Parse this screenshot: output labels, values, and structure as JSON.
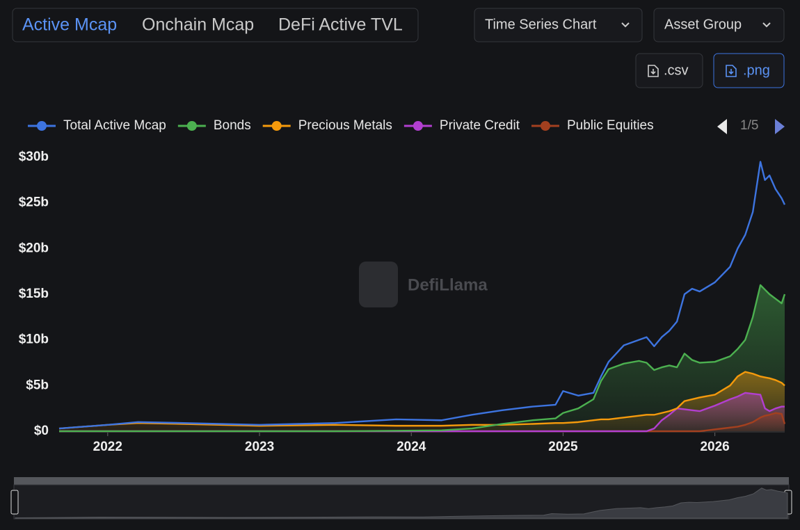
{
  "ui": {
    "tabs": [
      "Active Mcap",
      "Onchain Mcap",
      "DeFi Active TVL"
    ],
    "chart_type_button": "Time Series Chart",
    "group_button": "Asset Group",
    "csv_button": ".csv",
    "png_button": ".png",
    "legend_page": "1/5",
    "watermark": "DefiLlama"
  },
  "chart_data": {
    "type": "line",
    "x": [
      2021.68,
      2022.0,
      2022.2,
      2022.5,
      2023.0,
      2023.5,
      2023.9,
      2024.2,
      2024.4,
      2024.6,
      2024.8,
      2024.95,
      2025.0,
      2025.1,
      2025.2,
      2025.25,
      2025.3,
      2025.4,
      2025.5,
      2025.55,
      2025.6,
      2025.65,
      2025.7,
      2025.75,
      2025.8,
      2025.85,
      2025.9,
      2026.0,
      2026.1,
      2026.15,
      2026.2,
      2026.25,
      2026.3,
      2026.33,
      2026.36,
      2026.4,
      2026.44,
      2026.46
    ],
    "series": [
      {
        "name": "Total Active Mcap",
        "color": "#3d74e0",
        "values": [
          0.3,
          0.7,
          1.0,
          0.9,
          0.7,
          0.9,
          1.3,
          1.2,
          1.8,
          2.3,
          2.7,
          2.9,
          4.4,
          3.9,
          4.2,
          6.0,
          7.6,
          9.4,
          10.0,
          10.3,
          9.3,
          10.3,
          11.0,
          12.0,
          15.0,
          15.6,
          15.3,
          16.3,
          18.0,
          20.0,
          21.5,
          24.0,
          29.5,
          27.5,
          28.0,
          26.5,
          25.5,
          24.8
        ]
      },
      {
        "name": "Bonds",
        "color": "#4cb050",
        "values": [
          0,
          0,
          0,
          0,
          0,
          0,
          0.05,
          0.1,
          0.3,
          0.8,
          1.2,
          1.4,
          2.0,
          2.5,
          3.5,
          5.5,
          6.8,
          7.4,
          7.7,
          7.5,
          6.7,
          7.0,
          7.2,
          7.0,
          8.5,
          7.8,
          7.5,
          7.6,
          8.2,
          9.0,
          10.0,
          12.5,
          16.0,
          15.5,
          15.0,
          14.5,
          14.0,
          15.0
        ]
      },
      {
        "name": "Precious Metals",
        "color": "#f59a0c",
        "values": [
          0.3,
          0.7,
          0.9,
          0.8,
          0.6,
          0.7,
          0.6,
          0.6,
          0.7,
          0.7,
          0.8,
          0.9,
          0.9,
          1.0,
          1.2,
          1.3,
          1.3,
          1.5,
          1.7,
          1.8,
          1.8,
          2.0,
          2.2,
          2.5,
          3.3,
          3.5,
          3.7,
          4.0,
          5.0,
          6.0,
          6.5,
          6.3,
          6.0,
          5.9,
          5.8,
          5.6,
          5.3,
          5.0
        ]
      },
      {
        "name": "Private Credit",
        "color": "#b23fd0",
        "values": [
          0,
          0,
          0,
          0,
          0,
          0,
          0,
          0,
          0,
          0,
          0,
          0,
          0,
          0,
          0,
          0,
          0,
          0,
          0,
          0,
          0.3,
          1.2,
          1.8,
          2.5,
          2.4,
          2.3,
          2.2,
          2.8,
          3.5,
          3.8,
          4.2,
          4.1,
          4.0,
          2.5,
          2.2,
          2.5,
          2.7,
          2.7
        ]
      },
      {
        "name": "Public Equities",
        "color": "#a3401f",
        "values": [
          0,
          0,
          0,
          0,
          0,
          0,
          0,
          0,
          0,
          0,
          0,
          0,
          0,
          0,
          0,
          0,
          0,
          0,
          0,
          0,
          0,
          0,
          0,
          0,
          0,
          0,
          0,
          0.2,
          0.4,
          0.5,
          0.7,
          1.0,
          1.5,
          1.7,
          1.8,
          2.0,
          1.9,
          0.8
        ]
      }
    ],
    "xlim": [
      2021.68,
      2026.46
    ],
    "xticks": [
      2022,
      2023,
      2024,
      2025,
      2026
    ],
    "ylim": [
      0,
      30
    ],
    "yticks": [
      {
        "value": 0,
        "label": "$0"
      },
      {
        "value": 5,
        "label": "$5b"
      },
      {
        "value": 10,
        "label": "$10b"
      },
      {
        "value": 15,
        "label": "$15b"
      },
      {
        "value": 20,
        "label": "$20b"
      },
      {
        "value": 25,
        "label": "$25b"
      },
      {
        "value": 30,
        "label": "$30b"
      }
    ],
    "grid": false
  }
}
